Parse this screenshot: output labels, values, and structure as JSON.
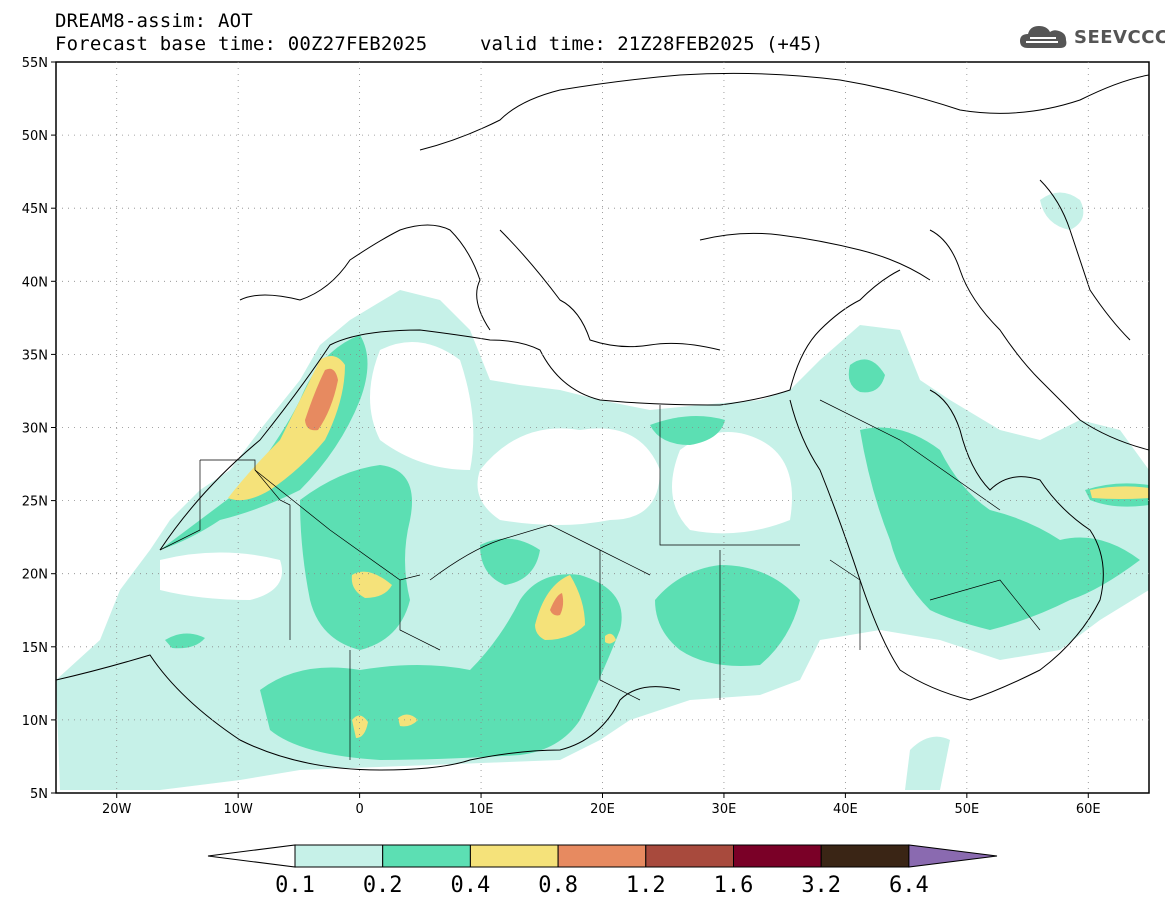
{
  "title": {
    "line1": "DREAM8-assim: AOT",
    "base_time": "Forecast base time: 00Z27FEB2025",
    "valid_time": "valid time: 21Z28FEB2025 (+45)"
  },
  "logo": {
    "text": "SEEVCCC",
    "icon": "cloud-icon"
  },
  "map": {
    "lat_labels": [
      "55N",
      "50N",
      "45N",
      "40N",
      "35N",
      "30N",
      "25N",
      "20N",
      "15N",
      "10N",
      "5N"
    ],
    "lon_labels": [
      "20W",
      "10W",
      "0",
      "10E",
      "20E",
      "30E",
      "40E",
      "50E",
      "60E"
    ],
    "lat_range": [
      5,
      55
    ],
    "lon_range": [
      -25,
      65
    ],
    "grid": "dotted"
  },
  "colorbar": {
    "levels": [
      "0.1",
      "0.2",
      "0.4",
      "0.8",
      "1.2",
      "1.6",
      "3.2",
      "6.4"
    ],
    "colors": [
      "#c6f1e8",
      "#5cdfb3",
      "#f5e27a",
      "#e78a60",
      "#a84a3d",
      "#7a0027",
      "#3a2515",
      "#8a6ab0"
    ],
    "low_color": "#ffffff",
    "high_color": "#8a6ab0"
  }
}
